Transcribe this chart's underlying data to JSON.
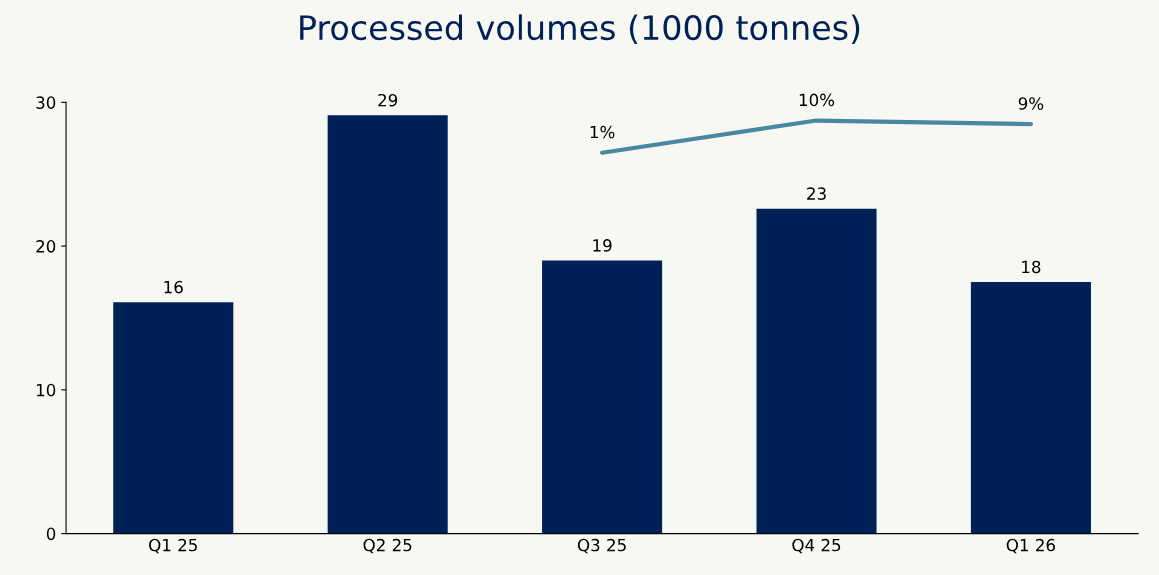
{
  "chart_data": {
    "type": "bar",
    "title": "Processed volumes (1000 tonnes)",
    "categories": [
      "Q1 25",
      "Q2 25",
      "Q3 25",
      "Q4 25",
      "Q1 26"
    ],
    "series": [
      {
        "color": "#002157",
        "values": [
          16.1,
          29.1,
          19.0,
          22.6,
          17.5
        ],
        "value_labels": [
          "16",
          "29",
          "19",
          "23",
          "18"
        ]
      },
      {
        "type": "line",
        "axis": "y2",
        "color": "#4a87a0",
        "values": [
          null,
          null,
          1,
          10,
          9
        ],
        "value_labels": [
          null,
          null,
          "1%",
          "10%",
          "9%"
        ]
      }
    ],
    "ylim": [
      0,
      30
    ],
    "yticks": [
      0,
      10,
      20,
      30
    ],
    "y2lim": [
      -105.7,
      15.1
    ],
    "grid": false,
    "legend": false
  }
}
